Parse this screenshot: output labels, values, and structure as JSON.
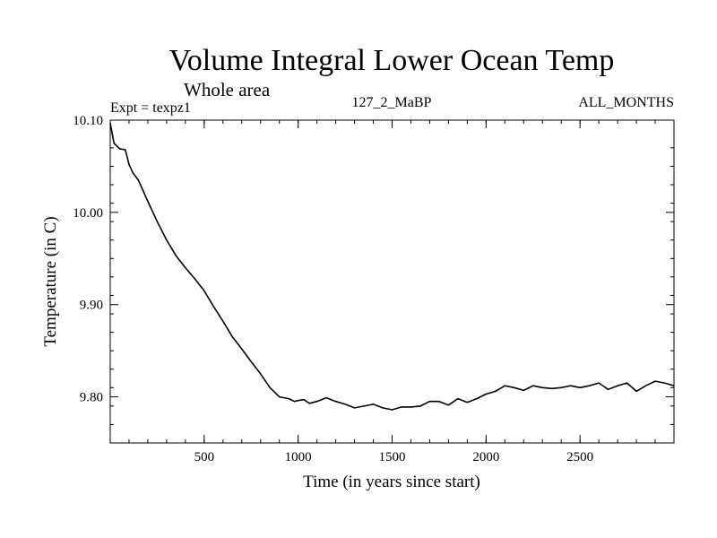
{
  "chart_data": {
    "type": "line",
    "title": "Volume Integral Lower Ocean Temp",
    "subtitle": "Whole area",
    "header_left": "Expt = texpz1",
    "header_center": "127_2_MaBP",
    "header_right": "ALL_MONTHS",
    "xlabel": "Time (in years since start)",
    "ylabel": "Temperature (in C)",
    "xlim": [
      0,
      3000
    ],
    "ylim": [
      9.75,
      10.1
    ],
    "xticks": [
      500,
      1000,
      1500,
      2000,
      2500
    ],
    "xtick_labels": [
      "500",
      "1000",
      "1500",
      "2000",
      "2500"
    ],
    "yticks": [
      9.8,
      9.9,
      10.0,
      10.1
    ],
    "ytick_labels": [
      "9.80",
      "9.90",
      "10.00",
      "10.10"
    ],
    "x_minor_step": 100,
    "y_minor_step": 0.02,
    "grid": false,
    "series": [
      {
        "color": "#000000",
        "x": [
          0,
          20,
          50,
          80,
          100,
          120,
          150,
          200,
          250,
          300,
          350,
          400,
          450,
          500,
          550,
          600,
          650,
          700,
          750,
          800,
          850,
          900,
          950,
          980,
          1000,
          1030,
          1060,
          1100,
          1150,
          1200,
          1250,
          1300,
          1350,
          1400,
          1450,
          1500,
          1550,
          1600,
          1650,
          1700,
          1750,
          1800,
          1850,
          1900,
          1950,
          2000,
          2050,
          2100,
          2150,
          2200,
          2250,
          2300,
          2350,
          2400,
          2450,
          2500,
          2550,
          2600,
          2650,
          2700,
          2750,
          2800,
          2850,
          2900,
          2950,
          3000
        ],
        "y": [
          10.097,
          10.075,
          10.069,
          10.068,
          10.052,
          10.043,
          10.035,
          10.012,
          9.99,
          9.97,
          9.953,
          9.94,
          9.928,
          9.915,
          9.898,
          9.882,
          9.865,
          9.852,
          9.838,
          9.825,
          9.81,
          9.8,
          9.798,
          9.795,
          9.796,
          9.797,
          9.793,
          9.795,
          9.799,
          9.795,
          9.792,
          9.788,
          9.79,
          9.792,
          9.788,
          9.786,
          9.789,
          9.789,
          9.79,
          9.795,
          9.795,
          9.791,
          9.798,
          9.794,
          9.798,
          9.803,
          9.806,
          9.812,
          9.81,
          9.807,
          9.812,
          9.81,
          9.809,
          9.81,
          9.812,
          9.81,
          9.812,
          9.815,
          9.808,
          9.812,
          9.815,
          9.806,
          9.812,
          9.817,
          9.815,
          9.812
        ]
      }
    ]
  }
}
